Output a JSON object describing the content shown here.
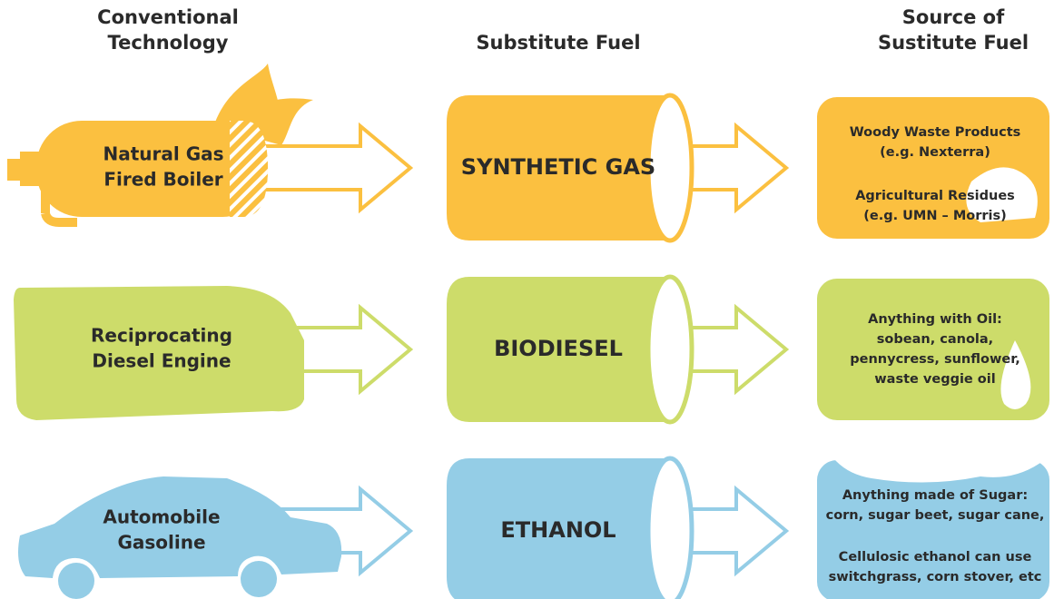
{
  "headers": [
    {
      "lines": [
        "Conventional",
        "Technology"
      ]
    },
    {
      "lines": [
        "Substitute Fuel"
      ]
    },
    {
      "lines": [
        "Source of",
        "Sustitute Fuel"
      ]
    }
  ],
  "rows": [
    {
      "technology": [
        "Natural Gas",
        "Fired Boiler"
      ],
      "fuel": "SYNTHETIC GAS",
      "source": [
        "Woody Waste Products",
        "(e.g. Nexterra)",
        "Agricultural Residues",
        "(e.g. UMN – Morris)"
      ]
    },
    {
      "technology": [
        "Reciprocating",
        "Diesel Engine"
      ],
      "fuel": "BIODIESEL",
      "source": [
        "Anything with Oil:",
        "sobean, canola,",
        "pennycress, sunflower,",
        "waste veggie oil"
      ]
    },
    {
      "technology": [
        "Automobile",
        "Gasoline"
      ],
      "fuel": "ETHANOL",
      "source": [
        "Anything made of Sugar:",
        "corn, sugar beet, sugar cane,",
        "Cellulosic ethanol can use",
        "switchgrass, corn stover, etc"
      ]
    }
  ]
}
